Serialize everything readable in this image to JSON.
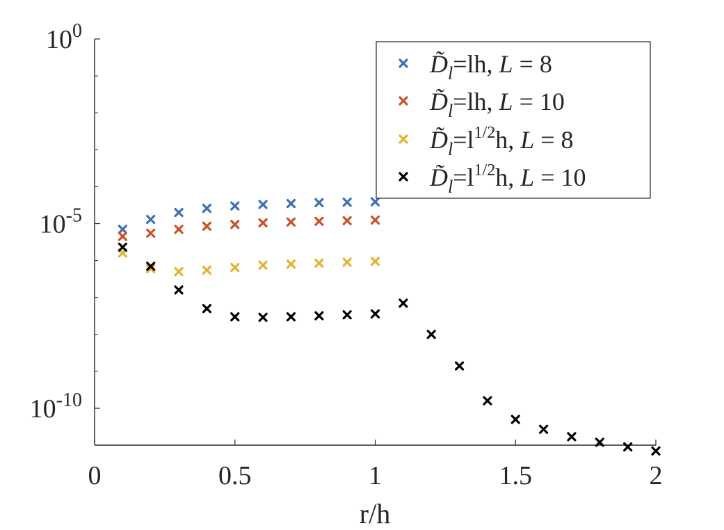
{
  "chart_data": {
    "type": "scatter",
    "title": "",
    "xlabel": "r/h",
    "ylabel": "",
    "xlim": [
      0,
      2
    ],
    "ylim_log10": [
      -10.5,
      0
    ],
    "yscale": "log",
    "x_ticks": [
      {
        "value": 0,
        "label": "0"
      },
      {
        "value": 0.5,
        "label": "0.5"
      },
      {
        "value": 1,
        "label": "1"
      },
      {
        "value": 1.5,
        "label": "1.5"
      },
      {
        "value": 2,
        "label": "2"
      }
    ],
    "y_ticks": [
      {
        "exp": 0,
        "base": "10",
        "sup": "0"
      },
      {
        "exp": -5,
        "base": "10",
        "sup": "-5"
      },
      {
        "exp": -10,
        "base": "10",
        "sup": "-10"
      }
    ],
    "legend_position": "top-right",
    "series": [
      {
        "name": "D̃_l=lh, L = 8",
        "label_parts": {
          "sym": "D̃",
          "sub": "l",
          "rhs": "=lh, ",
          "rhs_sup": "",
          "rhs_after": "",
          "L": "L",
          "eq": " = 8"
        },
        "color": "#3b6fb6",
        "x": [
          0.1,
          0.2,
          0.3,
          0.4,
          0.5,
          0.6,
          0.7,
          0.8,
          0.9,
          1.0
        ],
        "y": [
          7e-06,
          1.3e-05,
          2e-05,
          2.6e-05,
          3e-05,
          3.3e-05,
          3.5e-05,
          3.7e-05,
          3.8e-05,
          3.9e-05
        ]
      },
      {
        "name": "D̃_l=lh, L = 10",
        "label_parts": {
          "sym": "D̃",
          "sub": "l",
          "rhs": "=lh, ",
          "rhs_sup": "",
          "rhs_after": "",
          "L": "L",
          "eq": " = 10"
        },
        "color": "#c8502a",
        "x": [
          0.1,
          0.2,
          0.3,
          0.4,
          0.5,
          0.6,
          0.7,
          0.8,
          0.9,
          1.0
        ],
        "y": [
          4.5e-06,
          5.5e-06,
          7e-06,
          8.5e-06,
          9.5e-06,
          1.05e-05,
          1.1e-05,
          1.15e-05,
          1.2e-05,
          1.25e-05
        ]
      },
      {
        "name": "D̃_l=l^1/2h, L = 8",
        "label_parts": {
          "sym": "D̃",
          "sub": "l",
          "rhs": "=l",
          "rhs_sup": "1/2",
          "rhs_after": "h, ",
          "L": "L",
          "eq": " = 8"
        },
        "color": "#e3b22f",
        "x": [
          0.1,
          0.2,
          0.3,
          0.4,
          0.5,
          0.6,
          0.7,
          0.8,
          0.9,
          1.0
        ],
        "y": [
          1.6e-06,
          6e-07,
          5e-07,
          5.5e-07,
          6.5e-07,
          7.5e-07,
          8e-07,
          8.5e-07,
          9e-07,
          9.5e-07
        ]
      },
      {
        "name": "D̃_l=l^1/2h, L = 10",
        "label_parts": {
          "sym": "D̃",
          "sub": "l",
          "rhs": "=l",
          "rhs_sup": "1/2",
          "rhs_after": "h, ",
          "L": "L",
          "eq": " = 10"
        },
        "color": "#000000",
        "x": [
          0.1,
          0.2,
          0.3,
          0.4,
          0.5,
          0.6,
          0.7,
          0.8,
          0.9,
          1.0,
          1.1,
          1.2,
          1.3,
          1.4,
          1.5,
          1.6,
          1.7,
          1.8,
          1.9,
          2.0
        ],
        "y": [
          2.3e-06,
          7e-07,
          1.6e-07,
          5e-08,
          3e-08,
          2.9e-08,
          3e-08,
          3.2e-08,
          3.4e-08,
          3.6e-08,
          7e-08,
          1e-08,
          1.4e-09,
          1.6e-10,
          5e-11,
          2.7e-11,
          1.7e-11,
          1.2e-11,
          9e-12,
          7e-12
        ]
      }
    ]
  }
}
